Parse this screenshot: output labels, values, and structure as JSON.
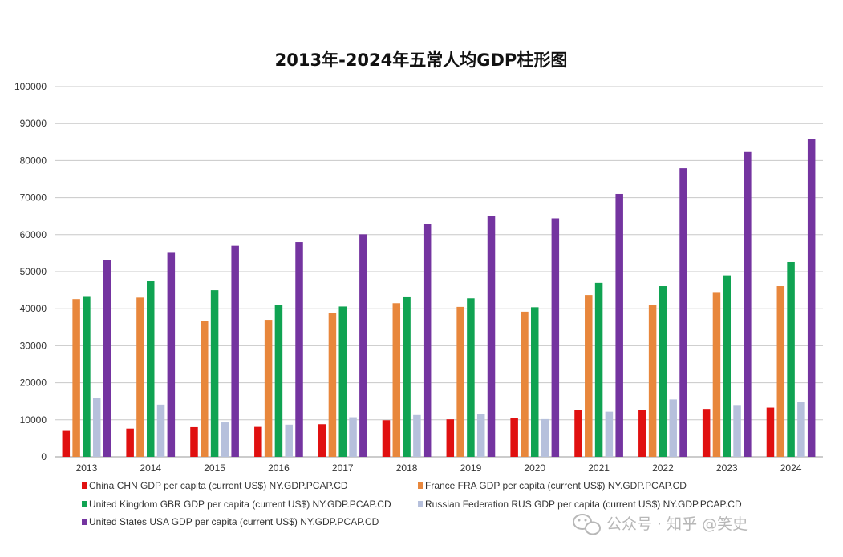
{
  "chart_data": {
    "type": "bar",
    "title": "2013年-2024年五常人均GDP柱形图",
    "xlabel": "",
    "ylabel": "",
    "ylim": [
      0,
      100000
    ],
    "yticks": [
      0,
      10000,
      20000,
      30000,
      40000,
      50000,
      60000,
      70000,
      80000,
      90000,
      100000
    ],
    "grid": "horizontal",
    "legend_position": "bottom",
    "categories": [
      "2013",
      "2014",
      "2015",
      "2016",
      "2017",
      "2018",
      "2019",
      "2020",
      "2021",
      "2022",
      "2023",
      "2024"
    ],
    "series": [
      {
        "name": "China CHN GDP per capita (current US$) NY.GDP.PCAP.CD",
        "color": "#e01010",
        "values": [
          7020,
          7640,
          8020,
          8090,
          8820,
          9900,
          10140,
          10410,
          12570,
          12720,
          12950,
          13300
        ]
      },
      {
        "name": "France FRA GDP per capita (current US$) NY.GDP.PCAP.CD",
        "color": "#e8873c",
        "values": [
          42600,
          43000,
          36600,
          37000,
          38800,
          41500,
          40500,
          39200,
          43700,
          41000,
          44500,
          46100
        ]
      },
      {
        "name": "United Kingdom GBR GDP per capita (current US$) NY.GDP.PCAP.CD",
        "color": "#10a352",
        "values": [
          43400,
          47400,
          45000,
          41000,
          40600,
          43300,
          42800,
          40400,
          47000,
          46100,
          49000,
          52600
        ]
      },
      {
        "name": "Russian Federation RUS GDP per capita (current US$) NY.GDP.PCAP.CD",
        "color": "#b6c0dc",
        "values": [
          15900,
          14100,
          9300,
          8700,
          10700,
          11300,
          11500,
          10200,
          12200,
          15500,
          14000,
          14900
        ]
      },
      {
        "name": "United States USA GDP per capita (current US$) NY.GDP.PCAP.CD",
        "color": "#7434a0",
        "values": [
          53200,
          55100,
          57000,
          58000,
          60100,
          62800,
          65100,
          64400,
          71000,
          77900,
          82300,
          85800
        ]
      }
    ]
  },
  "watermark": {
    "text": "公众号 · 知乎 @笑史",
    "icon": "wechat-icon"
  }
}
